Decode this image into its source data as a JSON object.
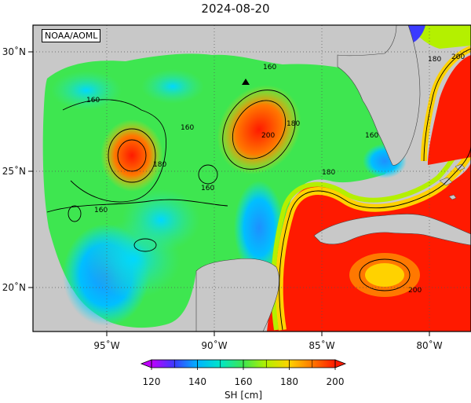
{
  "title": "2024-08-20",
  "credit": "NOAA/AOML",
  "colors": {
    "land": "#c8c8c8",
    "frame": "#000000",
    "grid": "#555555"
  },
  "lon_ticks": [
    "95˚W",
    "90˚W",
    "85˚W",
    "80˚W"
  ],
  "lat_ticks": [
    "30˚N",
    "25˚N",
    "20˚N"
  ],
  "contour_labels": [
    "160",
    "160",
    "160",
    "160",
    "160",
    "160",
    "180",
    "180",
    "180",
    "180",
    "200",
    "200",
    "200"
  ],
  "colorbar": {
    "label": "SH [cm]",
    "min": 120,
    "max": 200,
    "tick_labels": [
      "120",
      "140",
      "160",
      "180",
      "200"
    ],
    "stops": [
      "#c000ff",
      "#3b3bff",
      "#00b4ff",
      "#00e6c8",
      "#3ee650",
      "#b4f000",
      "#ffd200",
      "#ff7800",
      "#ff1a00"
    ]
  }
}
